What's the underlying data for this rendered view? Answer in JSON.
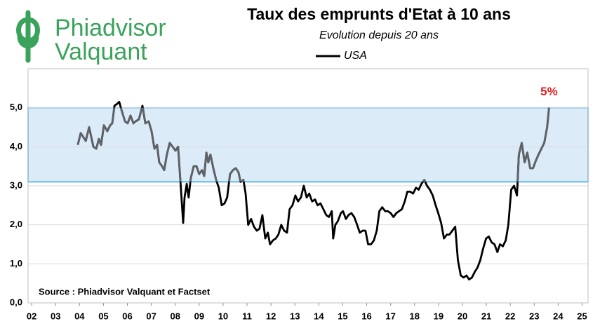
{
  "logo": {
    "line1": "Phiadvisor",
    "line2": "Valquant"
  },
  "chart_data": {
    "type": "line",
    "title": "Taux des emprunts d'Etat à 10 ans",
    "subtitle": "Evolution depuis 20 ans",
    "source": "Source : Phiadvisor Valquant et Factset",
    "annotation": "5%",
    "highlight_band": {
      "from": 3.1,
      "to": 5.0,
      "color": "#dcebf8",
      "border": "#2aa7df"
    },
    "grid": true,
    "legend": "top",
    "xlim": [
      2001.85,
      2025.25
    ],
    "ylim": [
      0,
      6
    ],
    "xticks": [
      {
        "value": 2002,
        "label": "02"
      },
      {
        "value": 2003,
        "label": "03"
      },
      {
        "value": 2004,
        "label": "04"
      },
      {
        "value": 2005,
        "label": "05"
      },
      {
        "value": 2006,
        "label": "06"
      },
      {
        "value": 2007,
        "label": "07"
      },
      {
        "value": 2008,
        "label": "08"
      },
      {
        "value": 2009,
        "label": "09"
      },
      {
        "value": 2010,
        "label": "10"
      },
      {
        "value": 2011,
        "label": "11"
      },
      {
        "value": 2012,
        "label": "12"
      },
      {
        "value": 2013,
        "label": "13"
      },
      {
        "value": 2014,
        "label": "14"
      },
      {
        "value": 2015,
        "label": "15"
      },
      {
        "value": 2016,
        "label": "16"
      },
      {
        "value": 2017,
        "label": "17"
      },
      {
        "value": 2018,
        "label": "18"
      },
      {
        "value": 2019,
        "label": "19"
      },
      {
        "value": 2020,
        "label": "20"
      },
      {
        "value": 2021,
        "label": "21"
      },
      {
        "value": 2022,
        "label": "22"
      },
      {
        "value": 2023,
        "label": "23"
      },
      {
        "value": 2024,
        "label": "24"
      },
      {
        "value": 2025,
        "label": "25"
      }
    ],
    "yticks": [
      {
        "value": 0,
        "label": "0,0"
      },
      {
        "value": 1,
        "label": "1,0"
      },
      {
        "value": 2,
        "label": "2,0"
      },
      {
        "value": 3,
        "label": "3,0"
      },
      {
        "value": 4,
        "label": "4,0"
      },
      {
        "value": 5,
        "label": "5,0"
      }
    ],
    "x": [
      2003.93,
      2004.05,
      2004.26,
      2004.4,
      2004.58,
      2004.7,
      2004.81,
      2004.9,
      2005.02,
      2005.16,
      2005.28,
      2005.37,
      2005.46,
      2005.57,
      2005.66,
      2005.75,
      2005.9,
      2006.01,
      2006.13,
      2006.25,
      2006.34,
      2006.48,
      2006.63,
      2006.75,
      2006.89,
      2007.01,
      2007.13,
      2007.24,
      2007.33,
      2007.45,
      2007.54,
      2007.65,
      2007.77,
      2007.89,
      2008.01,
      2008.12,
      2008.24,
      2008.33,
      2008.39,
      2008.48,
      2008.56,
      2008.65,
      2008.77,
      2008.89,
      2009.0,
      2009.12,
      2009.21,
      2009.3,
      2009.38,
      2009.47,
      2009.59,
      2009.71,
      2009.82,
      2009.94,
      2010.06,
      2010.17,
      2010.29,
      2010.41,
      2010.53,
      2010.64,
      2010.73,
      2010.85,
      2010.94,
      2011.05,
      2011.17,
      2011.29,
      2011.41,
      2011.52,
      2011.64,
      2011.76,
      2011.87,
      2011.96,
      2012.08,
      2012.2,
      2012.31,
      2012.43,
      2012.55,
      2012.67,
      2012.78,
      2012.9,
      2013.02,
      2013.13,
      2013.25,
      2013.37,
      2013.49,
      2013.6,
      2013.72,
      2013.84,
      2013.95,
      2014.07,
      2014.19,
      2014.31,
      2014.42,
      2014.54,
      2014.6,
      2014.69,
      2014.8,
      2014.92,
      2015.01,
      2015.13,
      2015.24,
      2015.36,
      2015.48,
      2015.6,
      2015.71,
      2015.83,
      2015.95,
      2016.06,
      2016.18,
      2016.3,
      2016.42,
      2016.53,
      2016.65,
      2016.77,
      2016.88,
      2017.0,
      2017.12,
      2017.24,
      2017.35,
      2017.47,
      2017.59,
      2017.7,
      2017.82,
      2017.94,
      2018.06,
      2018.17,
      2018.29,
      2018.41,
      2018.52,
      2018.64,
      2018.76,
      2018.88,
      2018.99,
      2019.11,
      2019.23,
      2019.35,
      2019.46,
      2019.58,
      2019.7,
      2019.81,
      2019.93,
      2020.05,
      2020.17,
      2020.28,
      2020.4,
      2020.52,
      2020.63,
      2020.75,
      2020.87,
      2020.99,
      2021.1,
      2021.22,
      2021.34,
      2021.46,
      2021.57,
      2021.69,
      2021.81,
      2021.92,
      2022.04,
      2022.16,
      2022.28,
      2022.36,
      2022.48,
      2022.6,
      2022.71,
      2022.83,
      2022.95,
      2023.07,
      2023.18,
      2023.3,
      2023.42,
      2023.54,
      2023.62
    ],
    "series": [
      {
        "name": "USA",
        "color": "#000000",
        "band_color": "#5f6368",
        "values": [
          4.05,
          4.35,
          4.15,
          4.5,
          4.0,
          3.95,
          4.2,
          4.05,
          4.55,
          4.4,
          4.55,
          4.6,
          5.05,
          5.1,
          5.15,
          4.95,
          4.65,
          4.6,
          4.8,
          4.6,
          4.65,
          4.7,
          5.05,
          4.6,
          4.65,
          4.4,
          3.95,
          4.05,
          3.6,
          3.5,
          3.4,
          3.8,
          4.1,
          4.0,
          3.9,
          4.0,
          2.9,
          2.05,
          2.7,
          3.05,
          2.7,
          3.2,
          3.5,
          3.5,
          3.3,
          3.4,
          3.25,
          3.85,
          3.6,
          3.8,
          3.45,
          3.15,
          2.95,
          2.5,
          2.55,
          2.7,
          3.3,
          3.4,
          3.45,
          3.35,
          3.1,
          3.15,
          2.8,
          2.0,
          2.15,
          1.95,
          1.85,
          1.9,
          2.25,
          1.65,
          1.8,
          1.5,
          1.6,
          1.65,
          1.75,
          2.0,
          1.85,
          1.8,
          2.4,
          2.5,
          2.75,
          2.6,
          2.7,
          3.0,
          2.7,
          2.8,
          2.6,
          2.65,
          2.5,
          2.55,
          2.4,
          2.25,
          2.2,
          2.35,
          1.65,
          2.0,
          2.1,
          2.3,
          2.35,
          2.15,
          2.25,
          2.3,
          2.2,
          2.0,
          1.8,
          1.85,
          1.85,
          1.5,
          1.5,
          1.6,
          1.85,
          2.35,
          2.45,
          2.35,
          2.35,
          2.3,
          2.2,
          2.3,
          2.35,
          2.4,
          2.6,
          2.85,
          2.85,
          2.8,
          2.95,
          2.9,
          3.05,
          3.15,
          3.0,
          2.9,
          2.75,
          2.5,
          2.3,
          2.05,
          1.65,
          1.75,
          1.75,
          1.85,
          1.95,
          1.1,
          0.7,
          0.65,
          0.7,
          0.6,
          0.65,
          0.8,
          0.9,
          1.1,
          1.4,
          1.65,
          1.7,
          1.55,
          1.5,
          1.3,
          1.5,
          1.45,
          1.6,
          2.0,
          2.9,
          3.0,
          2.75,
          3.8,
          4.1,
          3.6,
          3.85,
          3.45,
          3.45,
          3.65,
          3.8,
          3.95,
          4.1,
          4.5,
          5.0
        ]
      }
    ]
  }
}
